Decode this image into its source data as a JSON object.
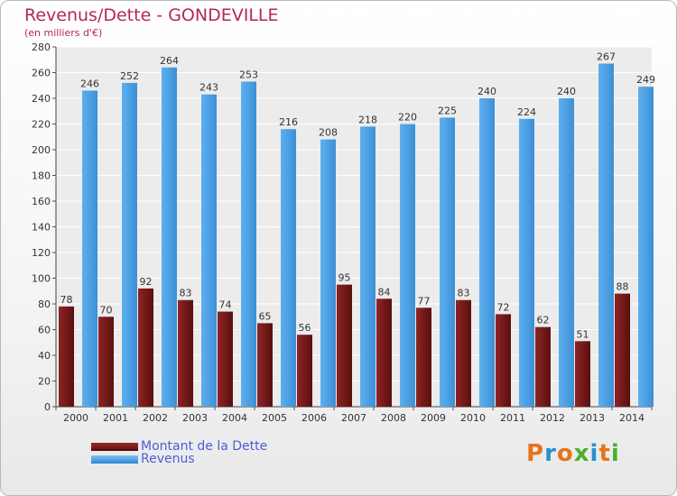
{
  "chart_data": {
    "type": "bar",
    "title": "Revenus/Dette - GONDEVILLE",
    "subtitle": "(en milliers d'€)",
    "categories": [
      "2000",
      "2001",
      "2002",
      "2003",
      "2004",
      "2005",
      "2006",
      "2007",
      "2008",
      "2009",
      "2010",
      "2011",
      "2012",
      "2013",
      "2014"
    ],
    "series": [
      {
        "name": "Montant de la Dette",
        "color": "#7a1a1a",
        "values": [
          78,
          70,
          92,
          83,
          74,
          65,
          56,
          95,
          84,
          77,
          83,
          72,
          62,
          51,
          88
        ]
      },
      {
        "name": "Revenus",
        "color": "#4aa0e6",
        "values": [
          246,
          252,
          264,
          243,
          253,
          216,
          208,
          218,
          220,
          225,
          240,
          224,
          240,
          267,
          249
        ]
      }
    ],
    "ylim": [
      0,
      280
    ],
    "yticks": [
      0,
      20,
      40,
      60,
      80,
      100,
      120,
      140,
      160,
      180,
      200,
      220,
      240,
      260,
      280
    ],
    "grid": true,
    "legend_position": "bottom-left"
  },
  "brand": {
    "letters": [
      "P",
      "r",
      "o",
      "x",
      "i",
      "t",
      "i"
    ],
    "colors": [
      "#e8731c",
      "#2b8fd0",
      "#e8731c",
      "#4caf2a",
      "#2b8fd0",
      "#e8731c",
      "#4caf2a"
    ]
  }
}
